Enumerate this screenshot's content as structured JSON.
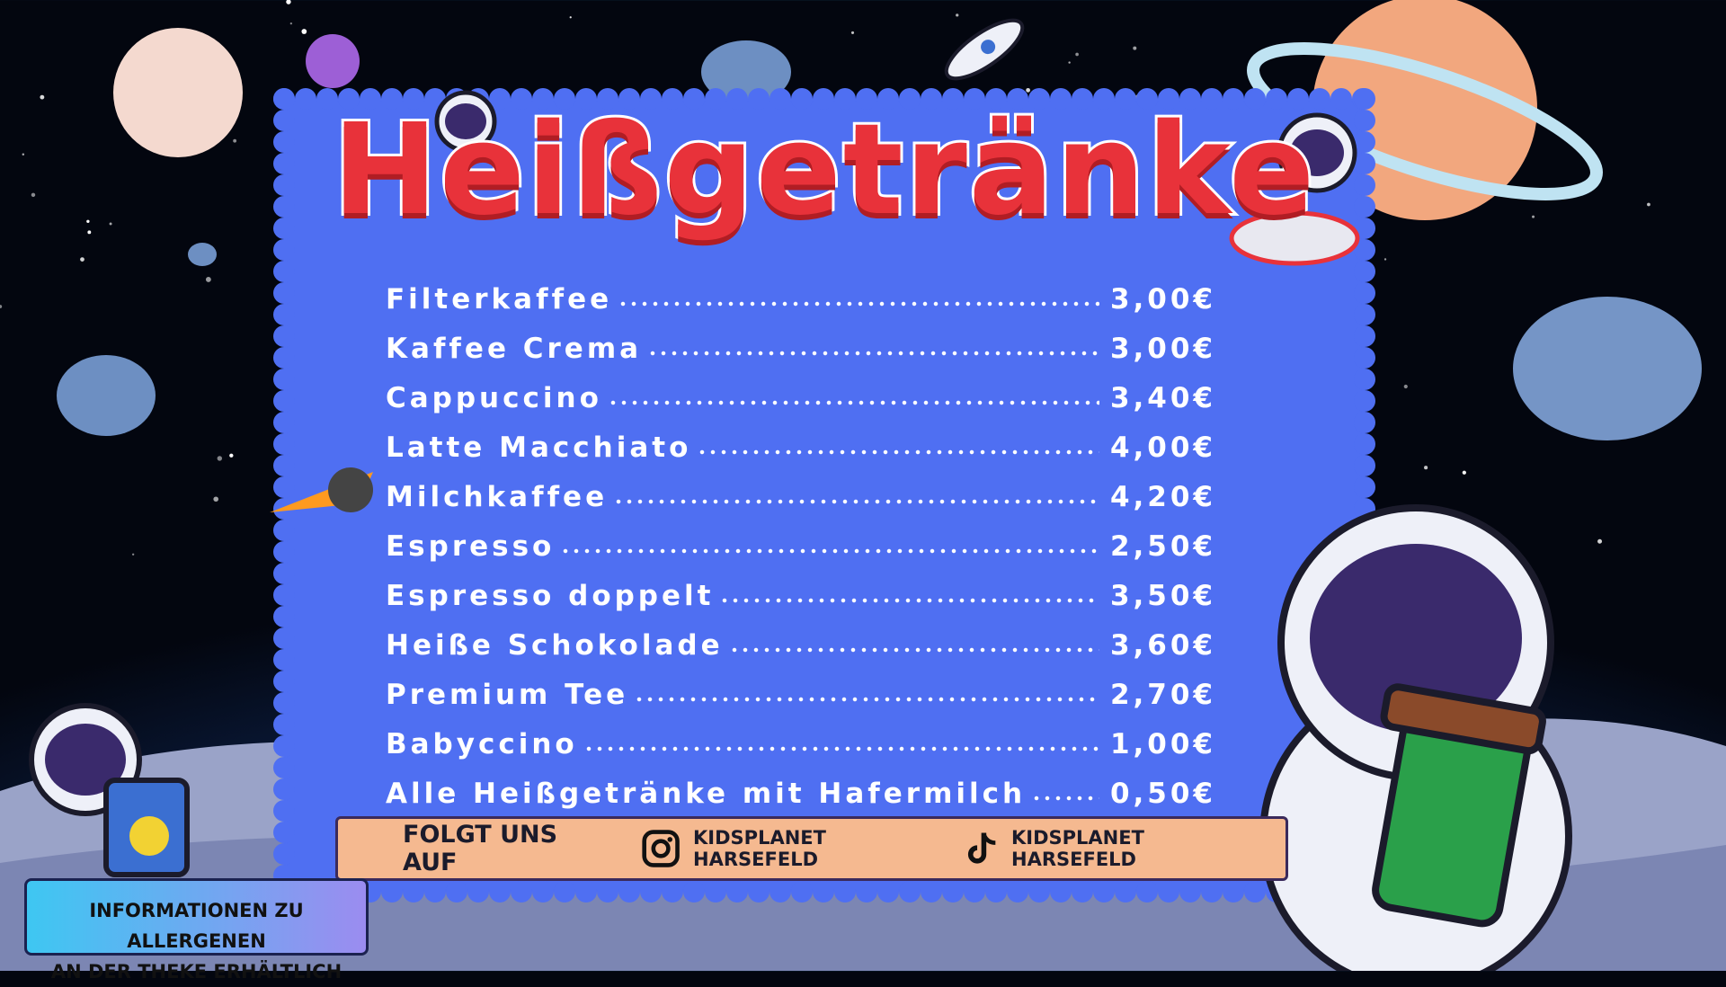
{
  "header": {
    "title": "Heißgetränke"
  },
  "menu": {
    "items": [
      {
        "name": "Filterkaffee",
        "price": "3,00€"
      },
      {
        "name": "Kaffee Crema",
        "price": "3,00€"
      },
      {
        "name": "Cappuccino",
        "price": "3,40€"
      },
      {
        "name": "Latte Macchiato",
        "price": "4,00€"
      },
      {
        "name": "Milchkaffee",
        "price": "4,20€"
      },
      {
        "name": "Espresso",
        "price": "2,50€"
      },
      {
        "name": "Espresso doppelt",
        "price": "3,50€"
      },
      {
        "name": "Heiße Schokolade",
        "price": "3,60€"
      },
      {
        "name": "Premium Tee",
        "price": "2,70€"
      },
      {
        "name": "Babyccino",
        "price": "1,00€"
      },
      {
        "name": "Alle Heißgetränke mit Hafermilch",
        "price": "0,50€"
      }
    ]
  },
  "social": {
    "label": "FOLGT UNS AUF",
    "instagram": "KIDSPLANET HARSEFELD",
    "tiktok": "KIDSPLANET HARSEFELD"
  },
  "notice": {
    "lines": [
      "INFORMATIONEN ZU ALLERGENEN",
      "AN DER THEKE ERHÄLTLICH"
    ]
  }
}
